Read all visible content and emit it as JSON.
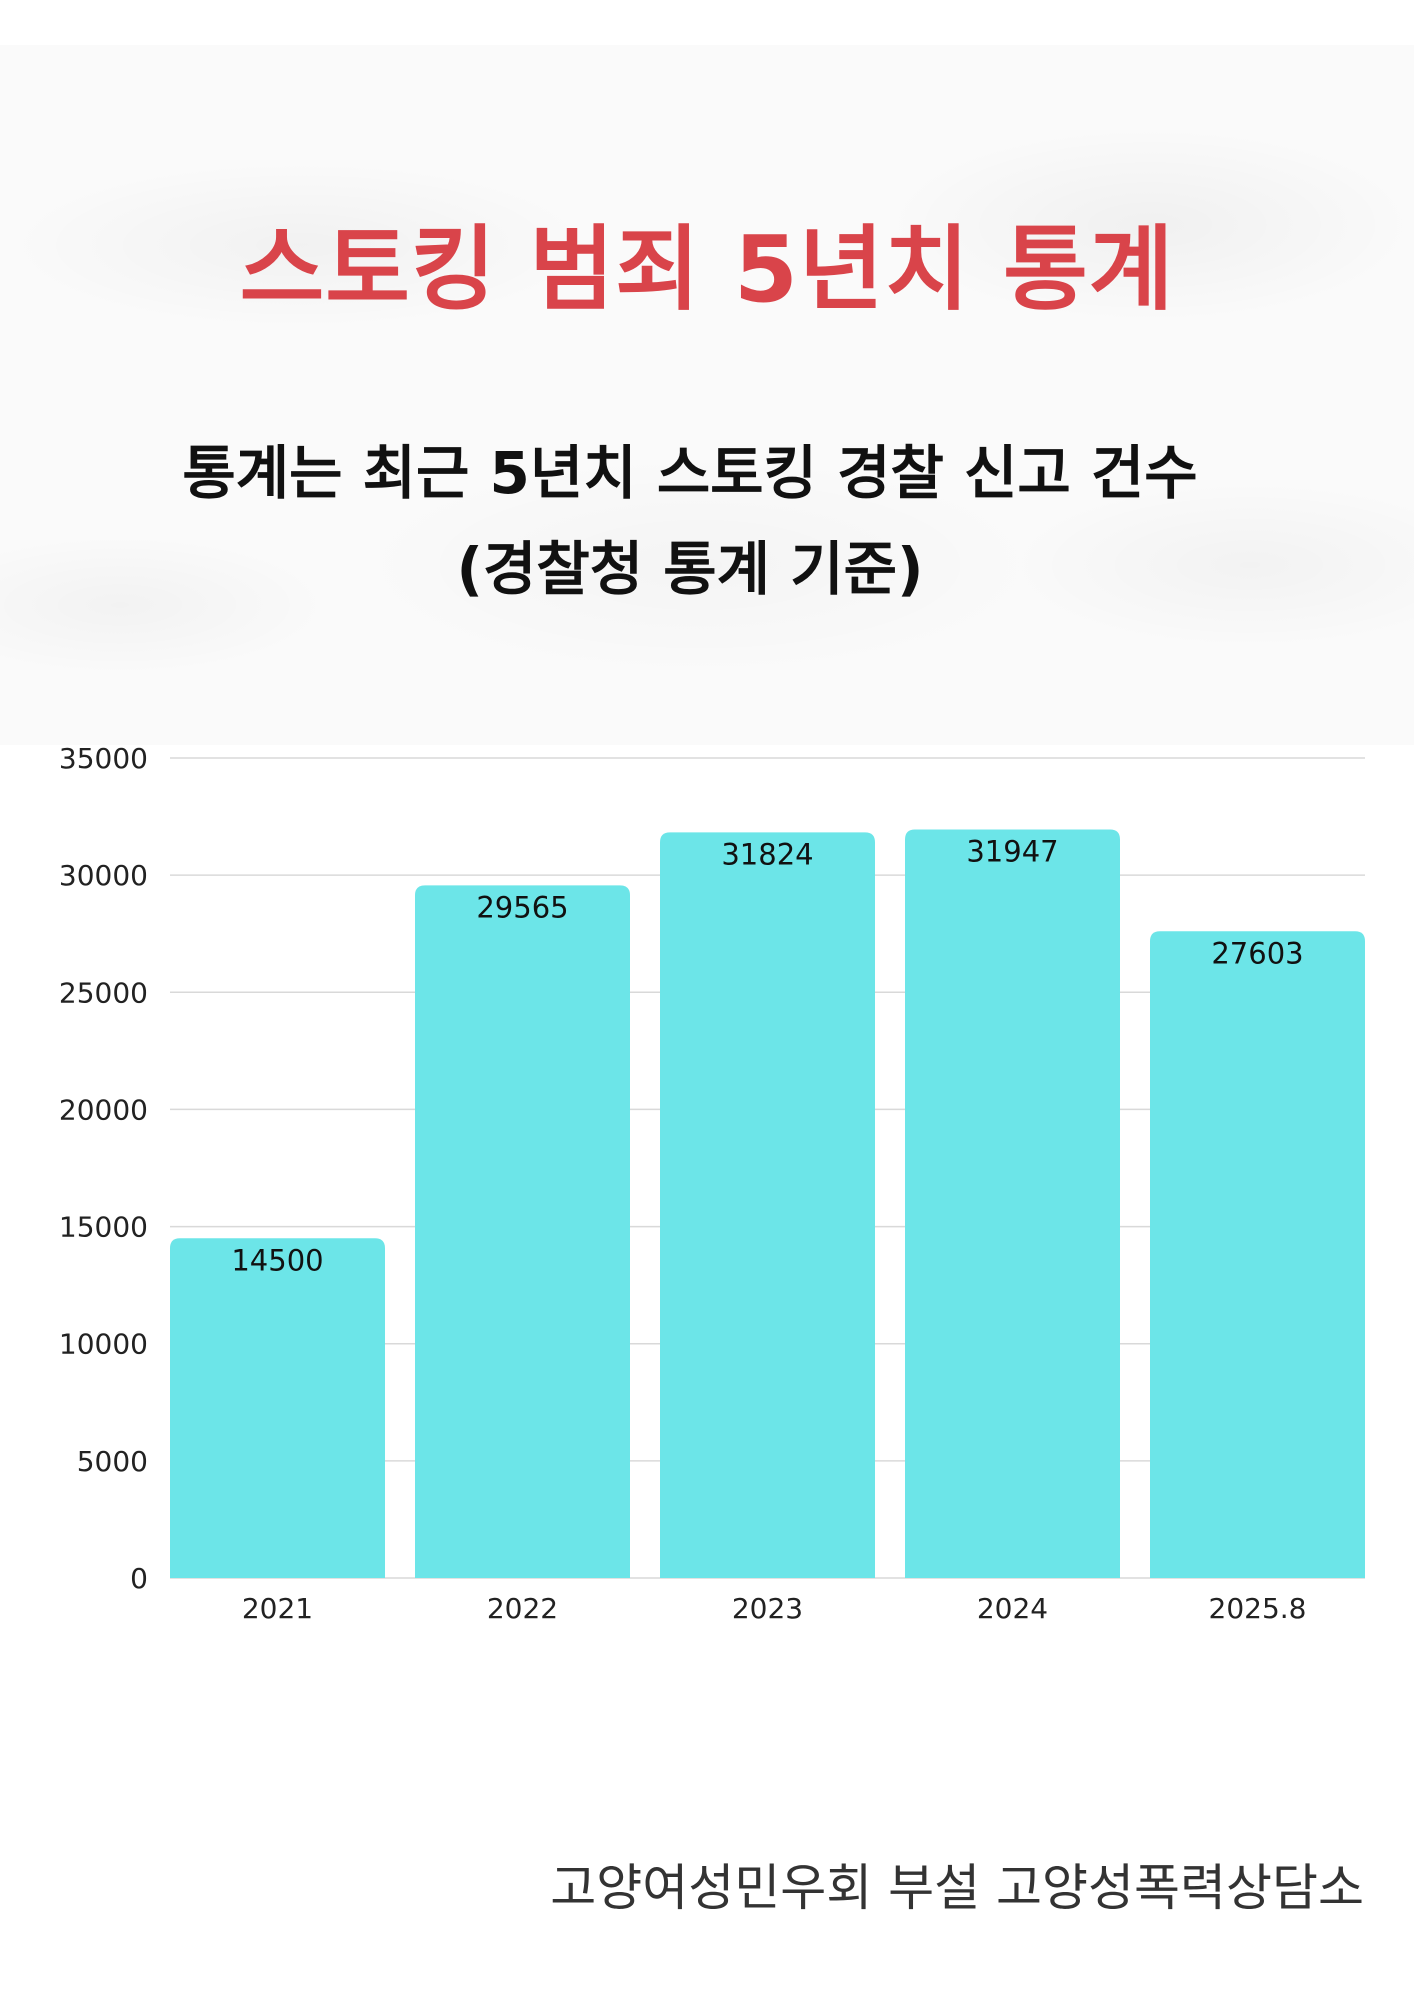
{
  "title": "스토킹 범죄 5년치 통계",
  "subtitle_line1": "통계는 최근 5년치 스토킹 경찰 신고 건수",
  "subtitle_line2": "(경찰청 통계 기준)",
  "footer": "고양여성민우회 부설 고양성폭력상담소",
  "colors": {
    "title": "#d9444a",
    "bar": "#6ce5e8",
    "grid": "#d9d9d9"
  },
  "chart_data": {
    "type": "bar",
    "categories": [
      "2021",
      "2022",
      "2023",
      "2024",
      "2025.8"
    ],
    "values": [
      14500,
      29565,
      31824,
      31947,
      27603
    ],
    "data_labels": [
      "14500",
      "29565",
      "31824",
      "31947",
      "27603"
    ],
    "yticks": [
      "0",
      "5000",
      "10000",
      "15000",
      "20000",
      "25000",
      "30000",
      "35000"
    ],
    "ylim": [
      0,
      35000
    ],
    "grid": true,
    "legend": "none"
  }
}
